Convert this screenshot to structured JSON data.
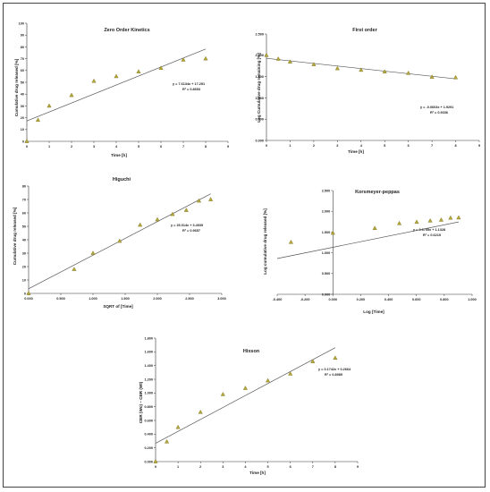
{
  "colors": {
    "marker_fill": "#b5a83a",
    "marker_stroke": "#7a6e1a",
    "trendline": "#555555",
    "axis": "#333333",
    "frame": "#444444"
  },
  "chart_data": [
    {
      "id": "zero",
      "type": "scatter",
      "title": "Zero Order Kinetics",
      "xlabel": "Time [h]",
      "ylabel": "Cumulative drug released [%]",
      "xlim": [
        0,
        9
      ],
      "ylim": [
        0,
        100
      ],
      "xticks": [
        "0",
        "1",
        "2",
        "3",
        "4",
        "5",
        "6",
        "7",
        "8",
        "9"
      ],
      "yticks": [
        "0",
        "10",
        "20",
        "30",
        "40",
        "50",
        "60",
        "70",
        "80",
        "90",
        "100"
      ],
      "x": [
        0,
        0.5,
        1,
        2,
        3,
        4,
        5,
        6,
        7,
        8
      ],
      "y": [
        0,
        18,
        30,
        39,
        51,
        55,
        59,
        62,
        69,
        70
      ],
      "trendline": {
        "slope": 7.6134,
        "intercept": 17.251,
        "x": [
          0,
          8
        ]
      },
      "equation": "y = 7.6134x + 17.251",
      "r2": "R² = 0.8653",
      "grid": false,
      "legend": "none"
    },
    {
      "id": "first",
      "type": "scatter",
      "title": "First order",
      "xlabel": "Time [h]",
      "ylabel": "Log Cumulative drug remaining [%]",
      "xlim": [
        0,
        9
      ],
      "ylim": [
        0,
        2.5
      ],
      "xticks": [
        "0",
        "1",
        "2",
        "3",
        "4",
        "5",
        "6",
        "7",
        "8",
        "9"
      ],
      "yticks": [
        "0.000",
        "0.500",
        "1.000",
        "1.500",
        "2.000",
        "2.500"
      ],
      "x": [
        0,
        0.5,
        1,
        2,
        3,
        4,
        5,
        6,
        7,
        8
      ],
      "y": [
        2.0,
        1.914,
        1.845,
        1.785,
        1.69,
        1.653,
        1.613,
        1.58,
        1.49,
        1.477
      ],
      "trendline": {
        "slope": -0.0603,
        "intercept": 1.9291,
        "x": [
          0,
          8
        ]
      },
      "equation": "y = -0.0603x + 1.9291",
      "r2": "R² = 0.9336",
      "grid": false,
      "legend": "none"
    },
    {
      "id": "higuchi",
      "type": "scatter",
      "title": "Higuchi",
      "xlabel": "SQRT of [Time]",
      "ylabel": "Cumulative drug released [%]",
      "xlim": [
        0,
        3
      ],
      "ylim": [
        0,
        80
      ],
      "xticks": [
        "0.000",
        "0.500",
        "1.000",
        "1.500",
        "2.000",
        "2.500",
        "3.000"
      ],
      "yticks": [
        "0",
        "10",
        "20",
        "30",
        "40",
        "50",
        "60",
        "70",
        "80"
      ],
      "x": [
        0,
        0.707,
        1,
        1.414,
        1.732,
        2,
        2.236,
        2.449,
        2.646,
        2.828
      ],
      "y": [
        0,
        18,
        30,
        39,
        51,
        55,
        59,
        62,
        69,
        70
      ],
      "trendline": {
        "slope": 25.014,
        "intercept": 3.4939,
        "x": [
          0,
          2.828
        ]
      },
      "equation": "y = 25.014x + 3.4939",
      "r2": "R² = 0.9657",
      "grid": false,
      "legend": "none"
    },
    {
      "id": "korsmeyer",
      "type": "scatter",
      "title": "Korsmeyer-peppas",
      "xlabel": "Log [Time]",
      "ylabel": "Log cumulative drug released [%]",
      "xlim": [
        -0.4,
        1.0
      ],
      "ylim": [
        0,
        2.5
      ],
      "xticks": [
        "-0.400",
        "-0.200",
        "0.000",
        "0.200",
        "0.400",
        "0.600",
        "0.800",
        "1.000"
      ],
      "yticks": [
        "0.000",
        "0.500",
        "1.000",
        "1.500",
        "2.000",
        "2.500"
      ],
      "x": [
        -0.301,
        0,
        0.301,
        0.477,
        0.602,
        0.699,
        0.778,
        0.845,
        0.903
      ],
      "y": [
        1.255,
        1.477,
        1.591,
        1.708,
        1.74,
        1.771,
        1.792,
        1.839,
        1.845
      ],
      "trendline": {
        "slope": 0.6755,
        "intercept": 1.1328,
        "x": [
          -0.4,
          0.903
        ]
      },
      "equation": "y = 0.6755x + 1.1328",
      "r2": "R² = 0.6215",
      "grid": false,
      "legend": "none"
    },
    {
      "id": "hixson",
      "type": "scatter",
      "title": "Hixson",
      "xlabel": "Time [h]",
      "ylabel": "CBR (Wo) – CBR (Wt)",
      "xlim": [
        0,
        9
      ],
      "ylim": [
        0,
        1.8
      ],
      "xticks": [
        "0",
        "1",
        "2",
        "3",
        "4",
        "5",
        "6",
        "7",
        "8",
        "9"
      ],
      "yticks": [
        "0.000",
        "0.200",
        "0.400",
        "0.600",
        "0.800",
        "1.000",
        "1.200",
        "1.400",
        "1.600",
        "1.800"
      ],
      "x": [
        0,
        0.5,
        1,
        2,
        3,
        4,
        5,
        6,
        7,
        8
      ],
      "y": [
        0,
        0.29,
        0.5,
        0.72,
        0.98,
        1.07,
        1.18,
        1.28,
        1.46,
        1.51
      ],
      "trendline": {
        "slope": 0.1742,
        "intercept": 0.2664,
        "x": [
          0,
          8
        ]
      },
      "equation": "y = 0.1742x + 0.2664",
      "r2": "R² = 0.8989",
      "grid": false,
      "legend": "none"
    }
  ]
}
